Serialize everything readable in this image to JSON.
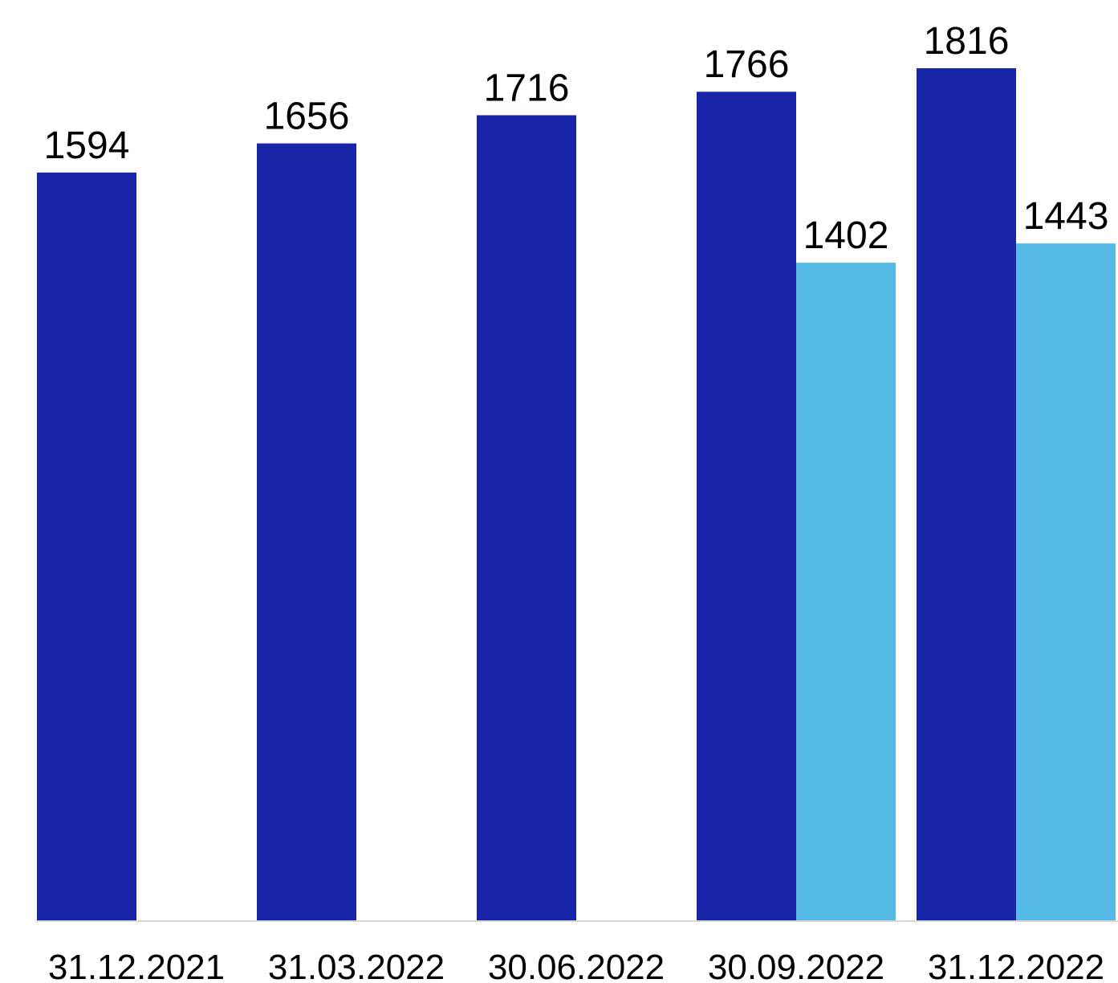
{
  "chart_data": {
    "type": "bar",
    "categories": [
      "31.12.2021",
      "31.03.2022",
      "30.06.2022",
      "30.09.2022",
      "31.12.2022"
    ],
    "series": [
      {
        "values": [
          1594,
          1656,
          1716,
          1766,
          1816
        ],
        "color": "#1925a8"
      },
      {
        "values": [
          null,
          null,
          null,
          1402,
          1443
        ],
        "color": "#55bbe6"
      }
    ],
    "ylim": [
      0,
      1816
    ],
    "grid": false,
    "legend": "none",
    "baseline_color": "#d9d9d9"
  }
}
